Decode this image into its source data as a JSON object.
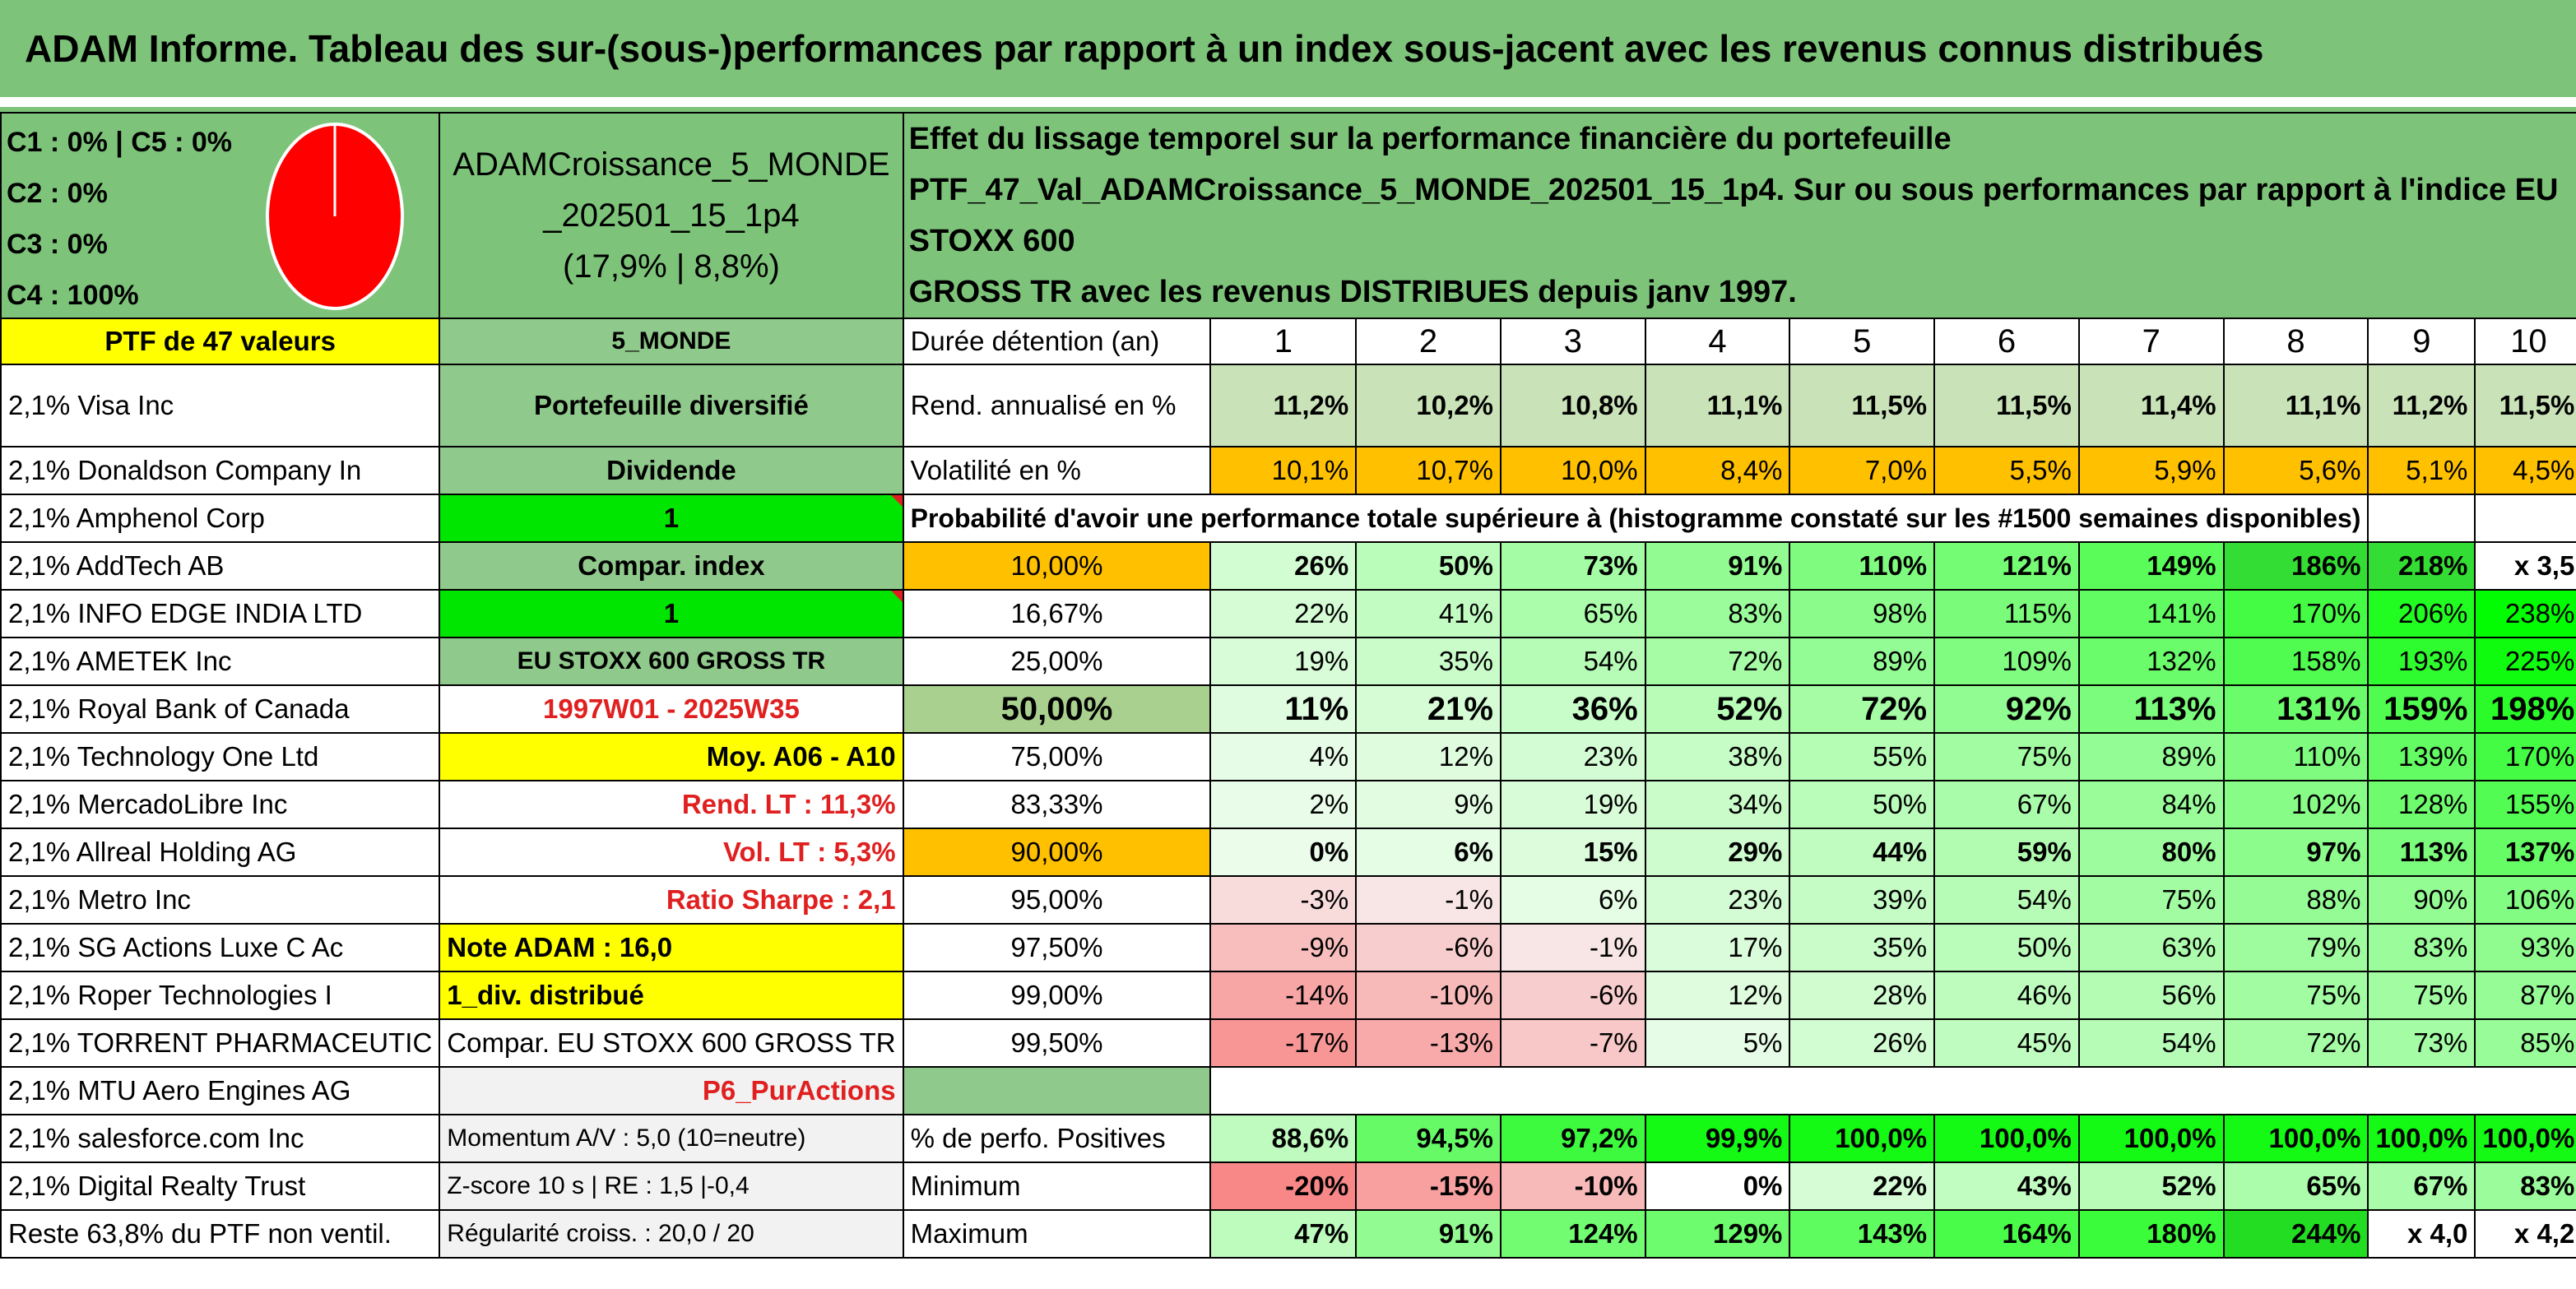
{
  "title": "ADAM Informe. Tableau des sur-(sous-)performances par rapport à un index sous-jacent avec les revenus connus distribués",
  "header": {
    "c_lines": [
      "C1 : 0% | C5 : 0%",
      "C2 : 0%",
      "C3 : 0%",
      "C4 : 100%"
    ],
    "ptf_name_lines": [
      "ADAMCroissance_5_MONDE",
      "_202501_15_1p4",
      "(17,9% | 8,8%)"
    ],
    "effect_lines": [
      "Effet du lissage temporel sur la performance financière du portefeuille",
      "PTF_47_Val_ADAMCroissance_5_MONDE_202501_15_1p4. Sur ou sous performances par rapport à l'indice EU STOXX 600",
      "GROSS TR avec les revenus DISTRIBUES depuis janv 1997."
    ],
    "ptf_count": "PTF de 47 valeurs",
    "zone": "5_MONDE",
    "duration_label": "Durée détention (an)",
    "years": [
      "1",
      "2",
      "3",
      "4",
      "5",
      "6",
      "7",
      "8",
      "9",
      "10"
    ],
    "pie_colors": {
      "fill": "#ff0000",
      "stroke": "#ffffff"
    }
  },
  "holdings": [
    "2,1% Visa Inc",
    "2,1% Donaldson Company In",
    "2,1% Amphenol Corp",
    "2,1% AddTech AB",
    "2,1% INFO EDGE INDIA LTD",
    "2,1% AMETEK Inc",
    "2,1% Royal Bank of Canada",
    "2,1% Technology One Ltd",
    "2,1% MercadoLibre Inc",
    "2,1% Allreal Holding AG",
    "2,1% Metro Inc",
    "2,1% SG Actions Luxe C Ac",
    "2,1% Roper Technologies I",
    "2,1% TORRENT PHARMACEUTIC",
    "2,1% MTU Aero Engines AG",
    "2,1% salesforce.com Inc",
    "2,1% Digital Realty Trust",
    "Reste 63,8% du PTF non ventil."
  ],
  "side_info": [
    "Portefeuille diversifié",
    "Dividende",
    "1",
    "Compar. index",
    "1",
    "EU STOXX 600 GROSS TR",
    "1997W01 - 2025W35",
    "Moy. A06 - A10",
    "Rend. LT : 11,3%",
    "Vol. LT : 5,3%",
    "Ratio Sharpe : 2,1",
    "Note ADAM : 16,0",
    "1_div. distribué",
    "Compar. EU STOXX 600 GROSS TR",
    "P6_PurActions",
    "Momentum A/V : 5,0 (10=neutre)",
    "Z-score 10 s | RE : 1,5 |-0,4",
    "Régularité croiss. : 20,0 / 20"
  ],
  "rend": {
    "label": "Rend. annualisé en %",
    "values": [
      "11,2%",
      "10,2%",
      "10,8%",
      "11,1%",
      "11,5%",
      "11,5%",
      "11,4%",
      "11,1%",
      "11,2%",
      "11,5%"
    ]
  },
  "vol": {
    "label": "Volatilité en %",
    "values": [
      "10,1%",
      "10,7%",
      "10,0%",
      "8,4%",
      "7,0%",
      "5,5%",
      "5,9%",
      "5,6%",
      "5,1%",
      "4,5%"
    ]
  },
  "prob_title": "Probabilité d'avoir une performance totale supérieure à (histogramme constaté sur les #1500 semaines disponibles)",
  "prob_rows": [
    {
      "pct": "10,00%",
      "values": [
        "26%",
        "50%",
        "73%",
        "91%",
        "110%",
        "121%",
        "149%",
        "186%",
        "218%",
        "x 3,5"
      ]
    },
    {
      "pct": "16,67%",
      "values": [
        "22%",
        "41%",
        "65%",
        "83%",
        "98%",
        "115%",
        "141%",
        "170%",
        "206%",
        "238%"
      ]
    },
    {
      "pct": "25,00%",
      "values": [
        "19%",
        "35%",
        "54%",
        "72%",
        "89%",
        "109%",
        "132%",
        "158%",
        "193%",
        "225%"
      ]
    },
    {
      "pct": "50,00%",
      "values": [
        "11%",
        "21%",
        "36%",
        "52%",
        "72%",
        "92%",
        "113%",
        "131%",
        "159%",
        "198%"
      ]
    },
    {
      "pct": "75,00%",
      "values": [
        "4%",
        "12%",
        "23%",
        "38%",
        "55%",
        "75%",
        "89%",
        "110%",
        "139%",
        "170%"
      ]
    },
    {
      "pct": "83,33%",
      "values": [
        "2%",
        "9%",
        "19%",
        "34%",
        "50%",
        "67%",
        "84%",
        "102%",
        "128%",
        "155%"
      ]
    },
    {
      "pct": "90,00%",
      "values": [
        "0%",
        "6%",
        "15%",
        "29%",
        "44%",
        "59%",
        "80%",
        "97%",
        "113%",
        "137%"
      ]
    },
    {
      "pct": "95,00%",
      "values": [
        "-3%",
        "-1%",
        "6%",
        "23%",
        "39%",
        "54%",
        "75%",
        "88%",
        "90%",
        "106%"
      ]
    },
    {
      "pct": "97,50%",
      "values": [
        "-9%",
        "-6%",
        "-1%",
        "17%",
        "35%",
        "50%",
        "63%",
        "79%",
        "83%",
        "93%"
      ]
    },
    {
      "pct": "99,00%",
      "values": [
        "-14%",
        "-10%",
        "-6%",
        "12%",
        "28%",
        "46%",
        "56%",
        "75%",
        "75%",
        "87%"
      ]
    },
    {
      "pct": "99,50%",
      "values": [
        "-17%",
        "-13%",
        "-7%",
        "5%",
        "26%",
        "45%",
        "54%",
        "72%",
        "73%",
        "85%"
      ]
    }
  ],
  "positives": {
    "label": "% de perfo. Positives",
    "values": [
      "88,6%",
      "94,5%",
      "97,2%",
      "99,9%",
      "100,0%",
      "100,0%",
      "100,0%",
      "100,0%",
      "100,0%",
      "100,0%"
    ]
  },
  "minimum": {
    "label": "Minimum",
    "values": [
      "-20%",
      "-15%",
      "-10%",
      "0%",
      "22%",
      "43%",
      "52%",
      "65%",
      "67%",
      "83%"
    ]
  },
  "maximum": {
    "label": "Maximum",
    "values": [
      "47%",
      "91%",
      "124%",
      "129%",
      "143%",
      "164%",
      "180%",
      "244%",
      "x 4,0",
      "x 4,2"
    ]
  }
}
